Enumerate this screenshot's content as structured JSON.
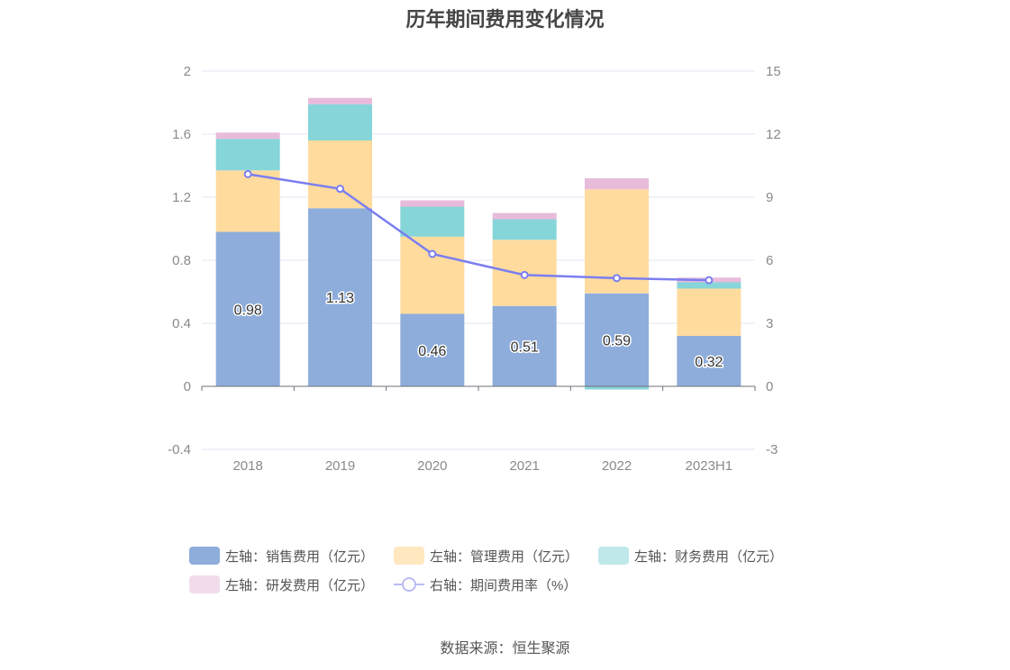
{
  "title": "历年期间费用变化情况",
  "source": "数据来源：恒生聚源",
  "chart_data": {
    "type": "bar",
    "stacked": true,
    "categories": [
      "2018",
      "2019",
      "2020",
      "2021",
      "2022",
      "2023H1"
    ],
    "left_axis": {
      "min": -0.4,
      "max": 2,
      "ticks": [
        "-0.4",
        "0",
        "0.4",
        "0.8",
        "1.2",
        "1.6",
        "2"
      ]
    },
    "right_axis": {
      "min": -3,
      "max": 15,
      "ticks": [
        "-3",
        "0",
        "3",
        "6",
        "9",
        "12",
        "15"
      ]
    },
    "series": [
      {
        "name": "左轴：销售费用（亿元）",
        "axis": "left",
        "color": "#8eaddb",
        "values": [
          0.98,
          1.13,
          0.46,
          0.51,
          0.59,
          0.32
        ],
        "labels": [
          "0.98",
          "1.13",
          "0.46",
          "0.51",
          "0.59",
          "0.32"
        ]
      },
      {
        "name": "左轴：管理费用（亿元）",
        "axis": "left",
        "color": "#ffdb9e",
        "values": [
          0.39,
          0.43,
          0.49,
          0.42,
          0.66,
          0.3
        ]
      },
      {
        "name": "左轴：财务费用（亿元）",
        "axis": "left",
        "color": "#86d5d9",
        "values": [
          0.2,
          0.23,
          0.19,
          0.13,
          -0.02,
          0.04
        ]
      },
      {
        "name": "左轴：研发费用（亿元）",
        "axis": "left",
        "color": "#e8bbdb",
        "values": [
          0.04,
          0.04,
          0.04,
          0.04,
          0.07,
          0.03
        ]
      },
      {
        "name": "右轴：期间费用率（%）",
        "axis": "right",
        "type": "line",
        "color": "#7b7ef0",
        "values": [
          10.1,
          9.4,
          6.3,
          5.3,
          5.15,
          5.05
        ]
      }
    ],
    "legend_position": "bottom",
    "grid": true
  }
}
